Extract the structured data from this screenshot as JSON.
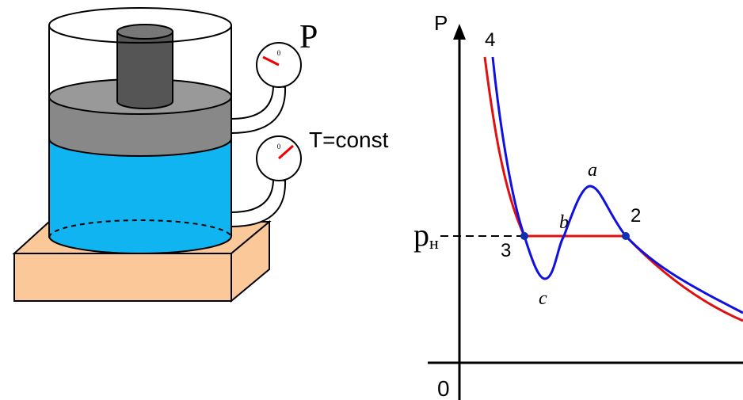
{
  "apparatus": {
    "pressure_label": "P",
    "temperature_label": "T=const",
    "gauges": [
      {
        "zero_label": "0"
      },
      {
        "zero_label": "0"
      }
    ]
  },
  "graph": {
    "y_axis_label": "P",
    "origin_label": "0",
    "pressure_symbol": "p",
    "pressure_subscript": "н",
    "point_labels": {
      "top": "4",
      "max": "a",
      "middle": "b",
      "min": "c",
      "right": "2",
      "left": "3"
    }
  }
}
